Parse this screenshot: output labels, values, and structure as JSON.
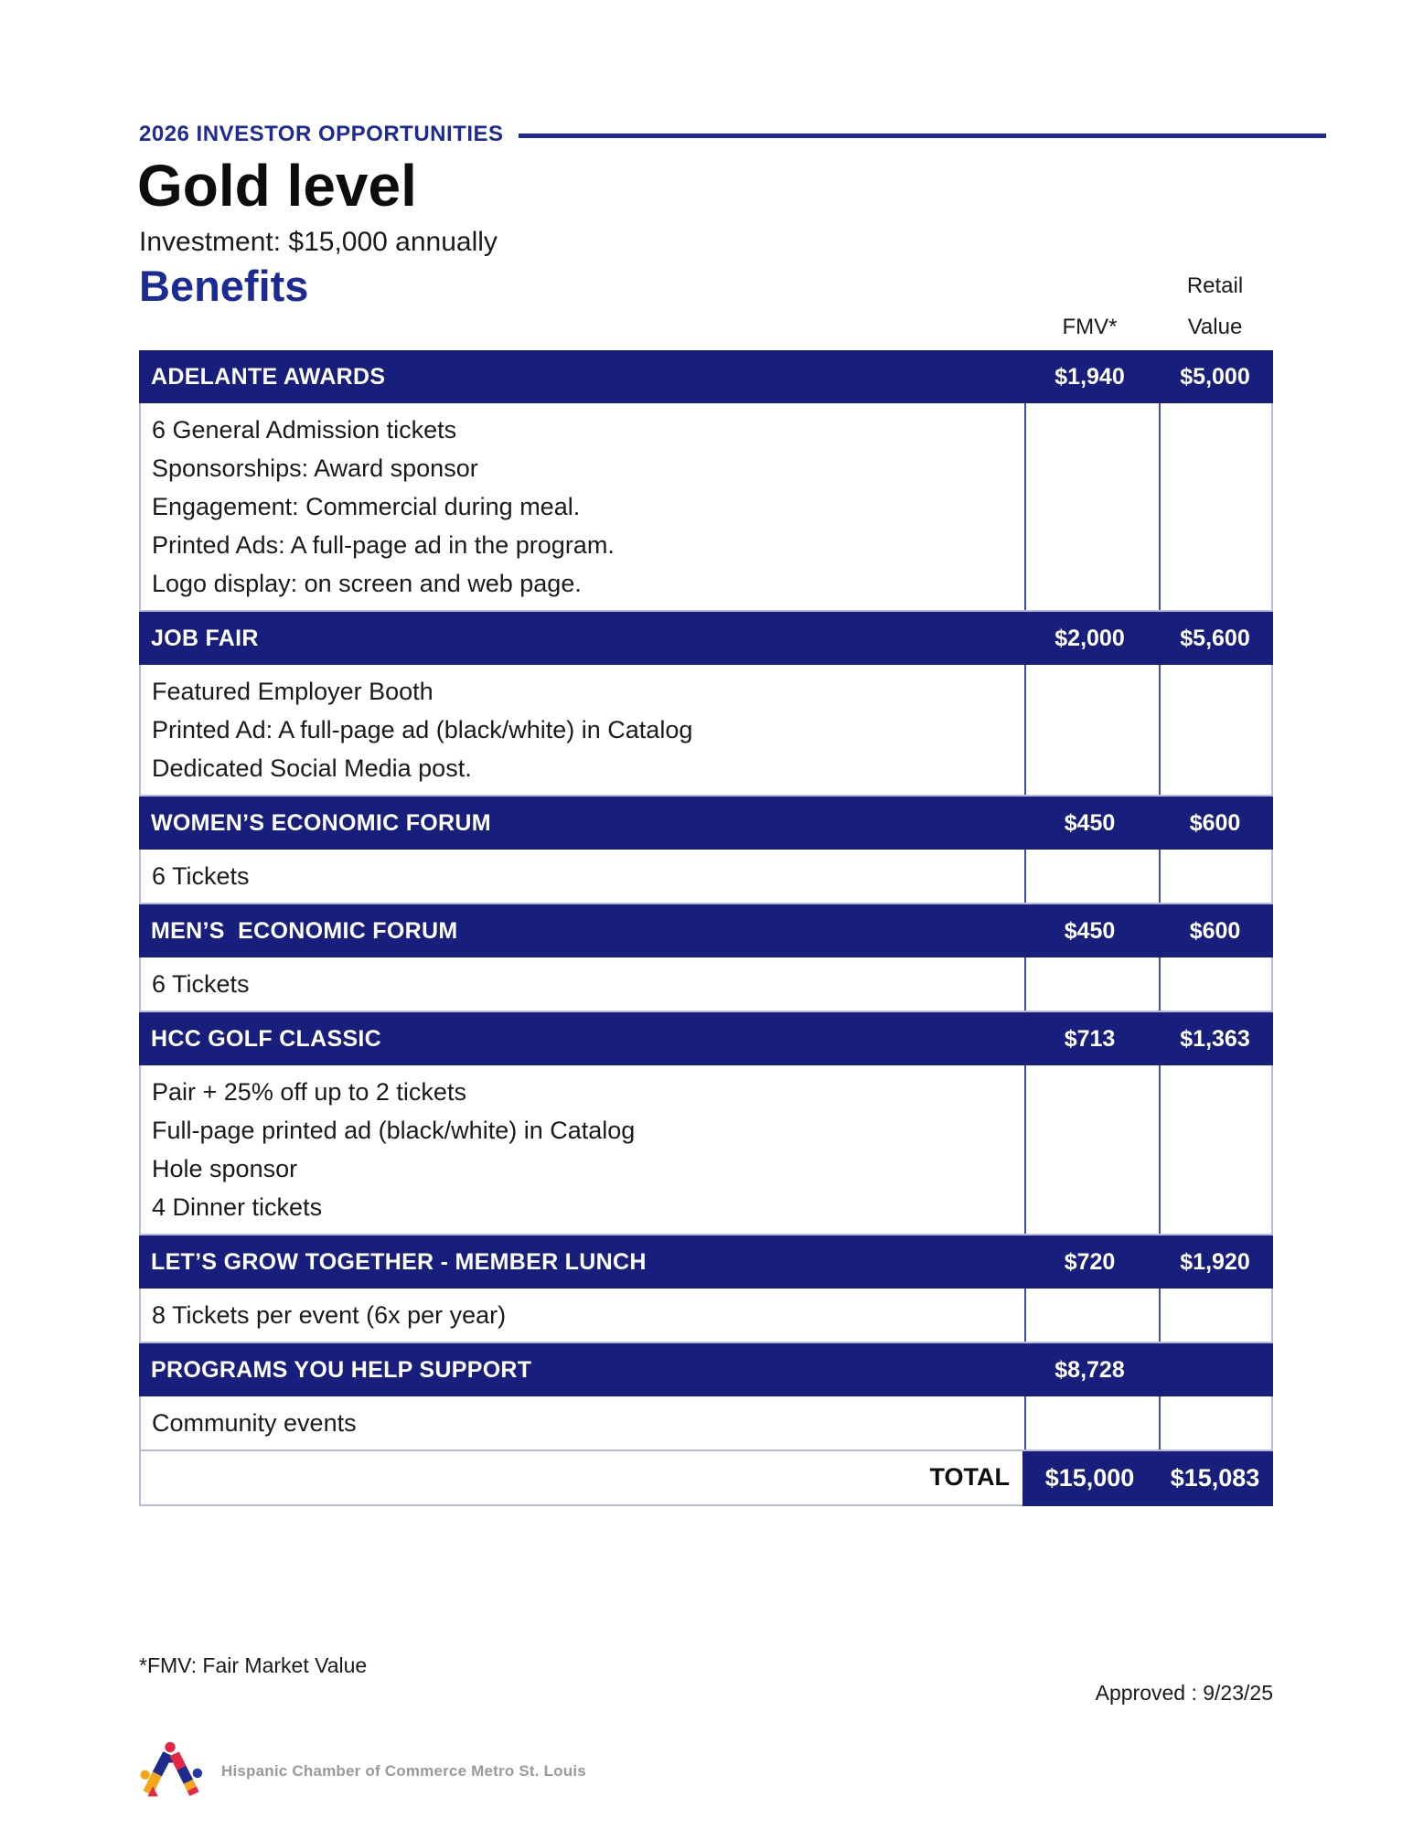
{
  "header": {
    "kicker": "2026 INVESTOR OPPORTUNITIES",
    "title": "Gold level",
    "investment": "Investment: $15,000 annually",
    "benefits_heading": "Benefits",
    "column_heads": {
      "fmv": "FMV*",
      "retail": "Retail\nValue"
    }
  },
  "table": {
    "sections": [
      {
        "name": "ADELANTE AWARDS",
        "fmv": "$1,940",
        "retail": "$5,000",
        "items": [
          "6 General Admission tickets",
          "Sponsorships: Award sponsor",
          "Engagement: Commercial during meal.",
          "Printed Ads: A full-page ad in the program.",
          "Logo display: on screen and web page."
        ]
      },
      {
        "name": "JOB FAIR",
        "fmv": "$2,000",
        "retail": "$5,600",
        "items": [
          "Featured Employer Booth",
          "Printed Ad: A full-page ad (black/white) in Catalog",
          "Dedicated Social Media post."
        ]
      },
      {
        "name": "WOMEN’S ECONOMIC FORUM",
        "fmv": "$450",
        "retail": "$600",
        "items": [
          "6 Tickets"
        ]
      },
      {
        "name": "MEN’S  ECONOMIC FORUM",
        "fmv": "$450",
        "retail": "$600",
        "items": [
          "6 Tickets"
        ]
      },
      {
        "name": "HCC GOLF CLASSIC",
        "fmv": "$713",
        "retail": "$1,363",
        "items": [
          "Pair + 25% off up to 2 tickets",
          "Full-page printed ad (black/white) in Catalog",
          "Hole sponsor",
          "4 Dinner tickets"
        ]
      },
      {
        "name": "LET’S GROW TOGETHER - MEMBER LUNCH",
        "fmv": "$720",
        "retail": "$1,920",
        "items": [
          "8 Tickets per event (6x per year)"
        ]
      },
      {
        "name": "PROGRAMS YOU HELP SUPPORT",
        "fmv": "$8,728",
        "retail": "",
        "items": [
          "Community events"
        ]
      }
    ],
    "total": {
      "label": "TOTAL",
      "fmv": "$15,000",
      "retail": "$15,083"
    }
  },
  "footer": {
    "footnote": "*FMV: Fair Market Value",
    "approved": "Approved : 9/23/25",
    "org_name": "Hispanic Chamber of Commerce Metro St. Louis"
  },
  "colors": {
    "table_navy": "#171e7c",
    "accent_blue": "#1e2b96",
    "divider_blue": "#3f4fab",
    "light_border": "#b6bade",
    "logo_red": "#e62744",
    "logo_yellow": "#f2a71b",
    "logo_blue": "#2438a6",
    "org_text_gray": "#9a9a9a"
  }
}
